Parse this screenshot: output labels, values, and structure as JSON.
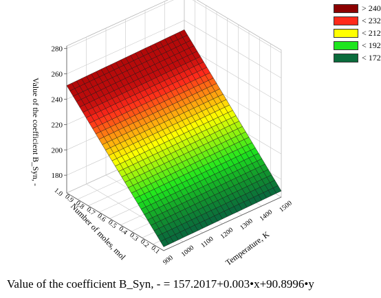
{
  "chart_data": {
    "type": "surface3d",
    "equation": "Value of the coefficient B_Syn, - = 157.2017+0.003•x+90.8996•y",
    "xlabel": "Temperature, K",
    "ylabel": "Number of moles, mol",
    "zlabel": "Value of the coefficient B_Syn, -",
    "x_ticks": [
      "900",
      "1000",
      "1100",
      "1200",
      "1300",
      "1400",
      "1500"
    ],
    "y_ticks": [
      "0.1",
      "0.2",
      "0.3",
      "0.4",
      "0.5",
      "0.6",
      "0.7",
      "0.8",
      "0.9",
      "1.0"
    ],
    "z_ticks": [
      "180",
      "200",
      "220",
      "240",
      "260",
      "280"
    ],
    "xlim": [
      900,
      1500
    ],
    "ylim": [
      0.1,
      1.0
    ],
    "zlim": [
      166,
      282
    ],
    "surface_coefficients": {
      "intercept": 157.2017,
      "x": 0.003,
      "y": 90.8996
    },
    "legend": [
      {
        "label": "> 240",
        "color": "#8b0000"
      },
      {
        "label": "< 232",
        "color": "#ff2a1a"
      },
      {
        "label": "< 212",
        "color": "#ffff00"
      },
      {
        "label": "< 192",
        "color": "#1ee61e"
      },
      {
        "label": "< 172",
        "color": "#0a6b3c"
      }
    ],
    "grid": true,
    "legend_position": "top-right"
  }
}
